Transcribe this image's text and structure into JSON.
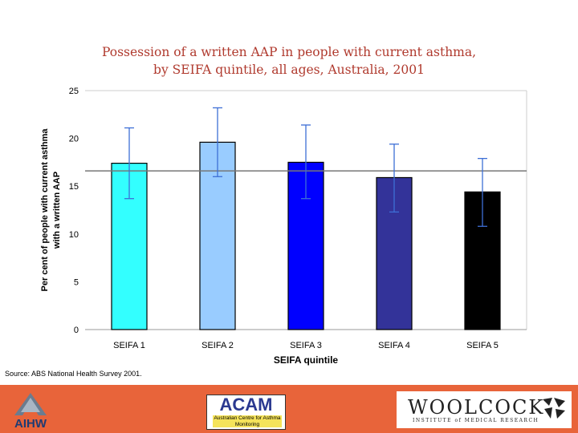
{
  "chart_data": {
    "type": "bar",
    "title": [
      "Possession of a written AAP in people with current asthma,",
      "by SEIFA quintile, all ages, Australia, 2001"
    ],
    "xlabel": "SEIFA quintile",
    "ylabel": [
      "Per cent of people with current asthma",
      "with a written AAP"
    ],
    "ylim": [
      0,
      25
    ],
    "yticks": [
      0,
      5,
      10,
      15,
      20,
      25
    ],
    "categories": [
      "SEIFA 1",
      "SEIFA 2",
      "SEIFA 3",
      "SEIFA 4",
      "SEIFA 5"
    ],
    "values": [
      17.4,
      19.6,
      17.5,
      15.9,
      14.4
    ],
    "error_low": [
      13.7,
      16.0,
      13.7,
      12.3,
      10.8
    ],
    "error_high": [
      21.1,
      23.2,
      21.4,
      19.4,
      17.9
    ],
    "bar_colors": [
      "#33ffff",
      "#99ccff",
      "#0000ff",
      "#333399",
      "#000000"
    ],
    "reference_line": 16.6,
    "grid": false
  },
  "source": "Source: ABS National Health Survey 2001.",
  "footer": {
    "aihw": "AIHW",
    "acam_title": "ACAM",
    "acam_subtitle": "Australian Centre for Asthma Monitoring",
    "woolcock_name": "WOOLCOCK",
    "woolcock_sub": "INSTITUTE of MEDICAL RESEARCH"
  },
  "colors": {
    "footer_bg": "#e8643a",
    "title": "#b03a2e",
    "error_bar": "#3d6fd6",
    "reference_line": "#777777"
  }
}
